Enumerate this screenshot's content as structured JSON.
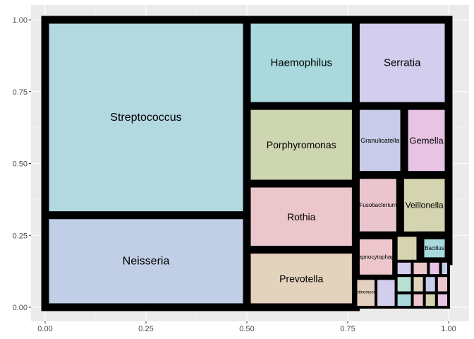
{
  "chart_data": {
    "type": "treemap",
    "title": "",
    "xlabel": "",
    "ylabel": "",
    "xlim": [
      0,
      1
    ],
    "ylim": [
      0,
      1
    ],
    "grid": true,
    "x_ticks": [
      "0.00",
      "0.25",
      "0.50",
      "0.75",
      "1.00"
    ],
    "y_ticks": [
      "0.00",
      "0.25",
      "0.50",
      "0.75",
      "1.00"
    ],
    "x_tick_values": [
      0,
      0.25,
      0.5,
      0.75,
      1
    ],
    "y_tick_values": [
      0,
      0.25,
      0.5,
      0.75,
      1
    ],
    "border_color": "#000000",
    "cells": [
      {
        "name": "Streptococcus",
        "x0": 0.0,
        "y0": 0.32,
        "x1": 0.5,
        "y1": 1.0,
        "color": "#b2d8e0",
        "label_size": 16
      },
      {
        "name": "Neisseria",
        "x0": 0.0,
        "y0": 0.0,
        "x1": 0.5,
        "y1": 0.32,
        "color": "#c1cfe6",
        "label_size": 16
      },
      {
        "name": "Haemophilus",
        "x0": 0.5,
        "y0": 0.7,
        "x1": 0.77,
        "y1": 1.0,
        "color": "#a9d9dd",
        "label_size": 15
      },
      {
        "name": "Serratia",
        "x0": 0.77,
        "y0": 0.7,
        "x1": 1.0,
        "y1": 1.0,
        "color": "#d3cdee",
        "label_size": 15
      },
      {
        "name": "Porphyromonas",
        "x0": 0.5,
        "y0": 0.43,
        "x1": 0.77,
        "y1": 0.7,
        "color": "#cdd6b0",
        "label_size": 14
      },
      {
        "name": "Rothia",
        "x0": 0.5,
        "y0": 0.2,
        "x1": 0.77,
        "y1": 0.43,
        "color": "#ebc6cb",
        "label_size": 14
      },
      {
        "name": "Prevotella",
        "x0": 0.5,
        "y0": 0.0,
        "x1": 0.77,
        "y1": 0.2,
        "color": "#e3d2bc",
        "label_size": 14
      },
      {
        "name": "Granulicatella",
        "x0": 0.77,
        "y0": 0.46,
        "x1": 0.89,
        "y1": 0.7,
        "color": "#c9cce9",
        "label_size": 9
      },
      {
        "name": "Gemella",
        "x0": 0.89,
        "y0": 0.46,
        "x1": 1.0,
        "y1": 0.7,
        "color": "#e8c3e4",
        "label_size": 13
      },
      {
        "name": "Fusobacterium",
        "x0": 0.77,
        "y0": 0.25,
        "x1": 0.88,
        "y1": 0.46,
        "color": "#ebc5cd",
        "label_size": 8
      },
      {
        "name": "Veillonella",
        "x0": 0.88,
        "y0": 0.25,
        "x1": 1.0,
        "y1": 0.46,
        "color": "#d4d4b0",
        "label_size": 12
      },
      {
        "name": "Capnocytophaga",
        "x0": 0.77,
        "y0": 0.1,
        "x1": 0.87,
        "y1": 0.25,
        "color": "#ecc6ca",
        "label_size": 8
      },
      {
        "name": "Actinomyces",
        "x0": 0.77,
        "y0": 0.0,
        "x1": 0.82,
        "y1": 0.1,
        "color": "#e4d0be",
        "label_size": 6
      },
      {
        "name": "",
        "x0": 0.82,
        "y0": 0.0,
        "x1": 0.87,
        "y1": 0.1,
        "color": "#d3cdee",
        "label_size": 4
      },
      {
        "name": "",
        "x0": 0.87,
        "y0": 0.16,
        "x1": 0.93,
        "y1": 0.25,
        "color": "#d4d4b0",
        "label_size": 3
      },
      {
        "name": "Bacillus",
        "x0": 0.93,
        "y0": 0.16,
        "x1": 1.0,
        "y1": 0.25,
        "color": "#a9d9dd",
        "label_size": 8
      },
      {
        "name": "",
        "x0": 0.87,
        "y0": 0.11,
        "x1": 0.91,
        "y1": 0.16,
        "color": "#d3cdee",
        "label_size": 3
      },
      {
        "name": "",
        "x0": 0.91,
        "y0": 0.11,
        "x1": 0.95,
        "y1": 0.16,
        "color": "#ebc6cb",
        "label_size": 3
      },
      {
        "name": "",
        "x0": 0.95,
        "y0": 0.11,
        "x1": 0.98,
        "y1": 0.16,
        "color": "#e8c3e4",
        "label_size": 3
      },
      {
        "name": "",
        "x0": 0.98,
        "y0": 0.11,
        "x1": 1.0,
        "y1": 0.16,
        "color": "#c1cfe6",
        "label_size": 3
      },
      {
        "name": "",
        "x0": 0.87,
        "y0": 0.05,
        "x1": 0.91,
        "y1": 0.11,
        "color": "#b7e0d3",
        "label_size": 3
      },
      {
        "name": "",
        "x0": 0.91,
        "y0": 0.05,
        "x1": 0.94,
        "y1": 0.11,
        "color": "#e3d2bc",
        "label_size": 3
      },
      {
        "name": "",
        "x0": 0.94,
        "y0": 0.05,
        "x1": 0.97,
        "y1": 0.11,
        "color": "#c9cce9",
        "label_size": 3
      },
      {
        "name": "",
        "x0": 0.97,
        "y0": 0.05,
        "x1": 1.0,
        "y1": 0.11,
        "color": "#ebc5cd",
        "label_size": 3
      },
      {
        "name": "",
        "x0": 0.87,
        "y0": 0.0,
        "x1": 0.91,
        "y1": 0.05,
        "color": "#a9d9dd",
        "label_size": 3
      },
      {
        "name": "",
        "x0": 0.91,
        "y0": 0.0,
        "x1": 0.94,
        "y1": 0.05,
        "color": "#ecc6ca",
        "label_size": 3
      },
      {
        "name": "",
        "x0": 0.94,
        "y0": 0.0,
        "x1": 0.97,
        "y1": 0.05,
        "color": "#d4d4b0",
        "label_size": 3
      },
      {
        "name": "",
        "x0": 0.97,
        "y0": 0.0,
        "x1": 1.0,
        "y1": 0.05,
        "color": "#e8c3e4",
        "label_size": 3
      }
    ]
  }
}
